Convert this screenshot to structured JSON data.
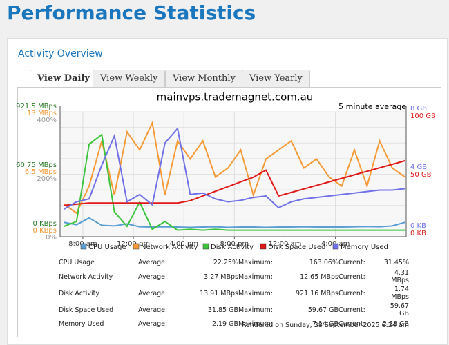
{
  "header": {
    "title": "Performance Statistics"
  },
  "panel": {
    "title": "Activity Overview",
    "tabs": [
      "View Daily",
      "View Weekly",
      "View Monthly",
      "View Yearly"
    ],
    "footer": "Rendered on Sunday, 28 September 2025 6:24 am"
  },
  "chart_data": {
    "type": "line",
    "title": "mainvps.trademagnet.com.au",
    "subtitle": "5 minute average",
    "x": [
      6.5,
      7.5,
      8.5,
      9.5,
      10.5,
      11.5,
      12.5,
      13.5,
      14.5,
      15.5,
      16.5,
      17.5,
      18.5,
      19.5,
      20.5,
      21.5,
      22.5,
      23.5,
      24.5,
      25.5,
      26.5,
      27.5,
      28.5,
      29.5,
      30.5,
      31.5,
      32.5,
      33.5
    ],
    "xlim": [
      6.2,
      33.6
    ],
    "xticks": [
      {
        "value": 8,
        "label": "8:00 am"
      },
      {
        "value": 12,
        "label": "12:00 pm"
      },
      {
        "value": 16,
        "label": "4:00 pm"
      },
      {
        "value": 20,
        "label": "8:00 pm"
      },
      {
        "value": 24,
        "label": "12:00 am"
      },
      {
        "value": 28,
        "label": "4:00 am"
      }
    ],
    "grid": true,
    "series": [
      {
        "name": "CPU Usage",
        "color": "#5a9fd4",
        "axis": "left",
        "ylim": [
          0,
          400
        ],
        "yticks": [
          {
            "value": 0,
            "label": "0%"
          },
          {
            "value": 200,
            "label": "200%"
          },
          {
            "value": 400,
            "label": "400%"
          }
        ],
        "values": [
          30,
          22,
          45,
          20,
          18,
          25,
          15,
          14,
          15,
          14,
          13,
          14,
          15,
          13,
          14,
          14,
          13,
          14,
          14,
          15,
          14,
          14,
          14,
          15,
          16,
          15,
          18,
          30
        ]
      },
      {
        "name": "Network Activity",
        "color": "#f59a35",
        "axis": "left",
        "ylim": [
          0,
          13
        ],
        "yticks": [
          {
            "value": 0,
            "label": "0 KBps"
          },
          {
            "value": 6.5,
            "label": "6.5 MBps"
          },
          {
            "value": 13,
            "label": "13 MBps"
          }
        ],
        "values": [
          3,
          2,
          5,
          10,
          4,
          11,
          9,
          12,
          4,
          10,
          8,
          10,
          6,
          7,
          9,
          4,
          8,
          9,
          10,
          7,
          8,
          6,
          5,
          9,
          5,
          10,
          7,
          6
        ]
      },
      {
        "name": "Disk Activity",
        "color": "#3cc43c",
        "axis": "left",
        "ylim": [
          0,
          121.5
        ],
        "yticks": [
          {
            "value": 0,
            "label": "0 KBps"
          },
          {
            "value": 60.75,
            "label": "60.75 MBps"
          }
        ],
        "max_label": "921.5 MBps",
        "values": [
          5,
          10,
          90,
          100,
          20,
          5,
          30,
          2,
          10,
          1,
          2,
          1,
          2,
          1,
          1,
          1,
          1,
          1,
          1,
          1,
          1,
          1,
          1,
          1,
          1,
          1,
          1,
          1
        ]
      },
      {
        "name": "Disk Space Used",
        "color": "#e01818",
        "axis": "right",
        "ylim": [
          0,
          100
        ],
        "yticks": [
          {
            "value": 0,
            "label": "0 KB"
          },
          {
            "value": 50,
            "label": "50 GB"
          },
          {
            "value": 100,
            "label": "100 GB"
          }
        ],
        "values": [
          22,
          23,
          24,
          24,
          24,
          24,
          24,
          24,
          24,
          24,
          26,
          30,
          34,
          38,
          42,
          46,
          52,
          30,
          33,
          36,
          39,
          42,
          45,
          48,
          51,
          54,
          57,
          60
        ]
      },
      {
        "name": "Memory Used",
        "color": "#7070e8",
        "axis": "right",
        "ylim": [
          0,
          8
        ],
        "yticks": [
          {
            "value": 0,
            "label": "0 KB"
          },
          {
            "value": 4,
            "label": "4 GB"
          },
          {
            "value": 8,
            "label": "8 GB"
          }
        ],
        "values": [
          1.5,
          2.0,
          2.2,
          4.5,
          6.5,
          2.0,
          2.5,
          1.8,
          6.0,
          7.0,
          2.5,
          2.6,
          2.2,
          2.0,
          2.1,
          2.3,
          2.4,
          1.6,
          2.0,
          2.2,
          2.3,
          2.4,
          2.5,
          2.6,
          2.7,
          2.8,
          2.8,
          2.9
        ]
      }
    ]
  },
  "table": {
    "rows": [
      [
        "CPU Usage",
        "Average:",
        "22.25%",
        "Maximum:",
        "163.06%",
        "Current:",
        "31.45%"
      ],
      [
        "Network Activity",
        "Average:",
        "3.27 MBps",
        "Maximum:",
        "12.65 MBps",
        "Current:",
        "4.31 MBps"
      ],
      [
        "Disk Activity",
        "Average:",
        "13.91 MBps",
        "Maximum:",
        "921.16 MBps",
        "Current:",
        "1.74 MBps"
      ],
      [
        "Disk Space Used",
        "Average:",
        "31.85 GB",
        "Maximum:",
        "59.67 GB",
        "Current:",
        "59.67 GB"
      ],
      [
        "Memory Used",
        "Average:",
        "2.19 GB",
        "Maximum:",
        "7.14 GB",
        "Current:",
        "2.38 GB"
      ]
    ]
  }
}
